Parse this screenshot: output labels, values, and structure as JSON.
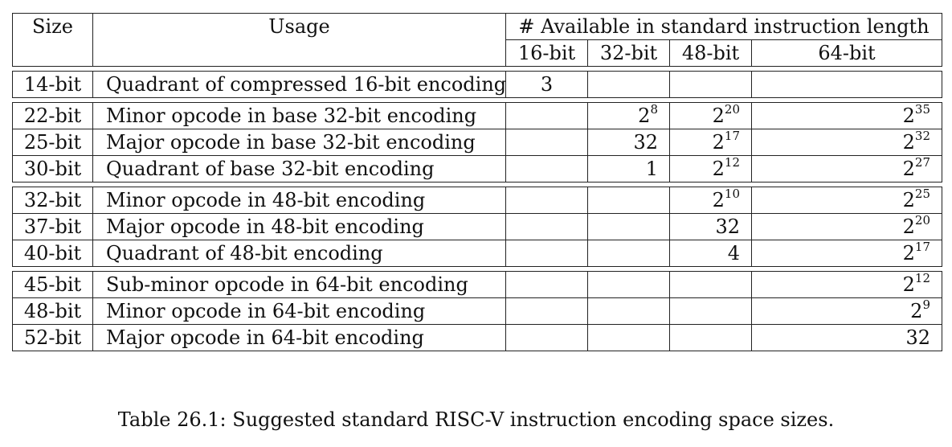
{
  "headers": {
    "size": "Size",
    "usage": "Usage",
    "available": "# Available in standard instruction length",
    "len16": "16-bit",
    "len32": "32-bit",
    "len48": "48-bit",
    "len64": "64-bit"
  },
  "groups": [
    [
      {
        "size": "14-bit",
        "usage": "Quadrant of compressed 16-bit encoding",
        "v16": {
          "b": "3",
          "e": ""
        },
        "v32": {
          "b": "",
          "e": ""
        },
        "v48": {
          "b": "",
          "e": ""
        },
        "v64": {
          "b": "",
          "e": ""
        }
      }
    ],
    [
      {
        "size": "22-bit",
        "usage": "Minor opcode in base 32-bit encoding",
        "v16": {
          "b": "",
          "e": ""
        },
        "v32": {
          "b": "2",
          "e": "8"
        },
        "v48": {
          "b": "2",
          "e": "20"
        },
        "v64": {
          "b": "2",
          "e": "35"
        }
      },
      {
        "size": "25-bit",
        "usage": "Major opcode in base 32-bit encoding",
        "v16": {
          "b": "",
          "e": ""
        },
        "v32": {
          "b": "32",
          "e": ""
        },
        "v48": {
          "b": "2",
          "e": "17"
        },
        "v64": {
          "b": "2",
          "e": "32"
        }
      },
      {
        "size": "30-bit",
        "usage": "Quadrant of base 32-bit encoding",
        "v16": {
          "b": "",
          "e": ""
        },
        "v32": {
          "b": "1",
          "e": ""
        },
        "v48": {
          "b": "2",
          "e": "12"
        },
        "v64": {
          "b": "2",
          "e": "27"
        }
      }
    ],
    [
      {
        "size": "32-bit",
        "usage": "Minor opcode in 48-bit encoding",
        "v16": {
          "b": "",
          "e": ""
        },
        "v32": {
          "b": "",
          "e": ""
        },
        "v48": {
          "b": "2",
          "e": "10"
        },
        "v64": {
          "b": "2",
          "e": "25"
        }
      },
      {
        "size": "37-bit",
        "usage": "Major opcode in 48-bit encoding",
        "v16": {
          "b": "",
          "e": ""
        },
        "v32": {
          "b": "",
          "e": ""
        },
        "v48": {
          "b": "32",
          "e": ""
        },
        "v64": {
          "b": "2",
          "e": "20"
        }
      },
      {
        "size": "40-bit",
        "usage": "Quadrant of 48-bit encoding",
        "v16": {
          "b": "",
          "e": ""
        },
        "v32": {
          "b": "",
          "e": ""
        },
        "v48": {
          "b": "4",
          "e": ""
        },
        "v64": {
          "b": "2",
          "e": "17"
        }
      }
    ],
    [
      {
        "size": "45-bit",
        "usage": "Sub-minor opcode in 64-bit encoding",
        "v16": {
          "b": "",
          "e": ""
        },
        "v32": {
          "b": "",
          "e": ""
        },
        "v48": {
          "b": "",
          "e": ""
        },
        "v64": {
          "b": "2",
          "e": "12"
        }
      },
      {
        "size": "48-bit",
        "usage": "Minor opcode in 64-bit encoding",
        "v16": {
          "b": "",
          "e": ""
        },
        "v32": {
          "b": "",
          "e": ""
        },
        "v48": {
          "b": "",
          "e": ""
        },
        "v64": {
          "b": "2",
          "e": "9"
        }
      },
      {
        "size": "52-bit",
        "usage": "Major opcode in 64-bit encoding",
        "v16": {
          "b": "",
          "e": ""
        },
        "v32": {
          "b": "",
          "e": ""
        },
        "v48": {
          "b": "",
          "e": ""
        },
        "v64": {
          "b": "32",
          "e": ""
        }
      }
    ]
  ],
  "caption": "Table 26.1: Suggested standard RISC-V instruction encoding space sizes."
}
